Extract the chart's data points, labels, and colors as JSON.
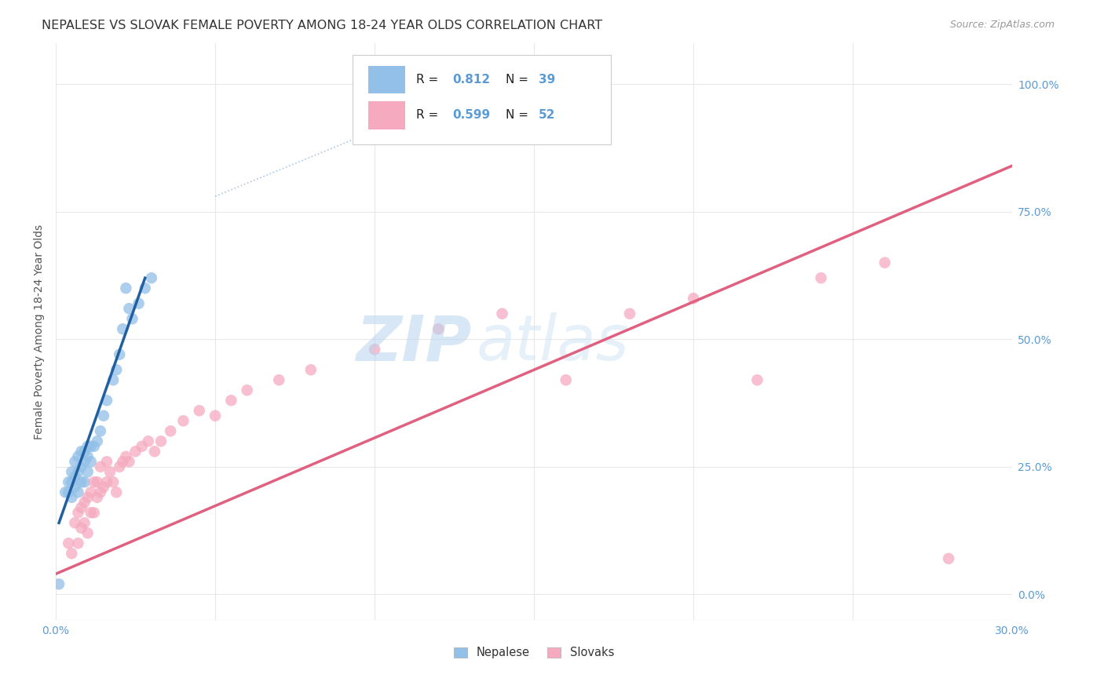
{
  "title": "NEPALESE VS SLOVAK FEMALE POVERTY AMONG 18-24 YEAR OLDS CORRELATION CHART",
  "source": "Source: ZipAtlas.com",
  "ylabel": "Female Poverty Among 18-24 Year Olds",
  "xlim": [
    0.0,
    0.3
  ],
  "ylim": [
    -0.05,
    1.08
  ],
  "xticks": [
    0.0,
    0.05,
    0.1,
    0.15,
    0.2,
    0.25,
    0.3
  ],
  "yticks": [
    0.0,
    0.25,
    0.5,
    0.75,
    1.0
  ],
  "ytick_labels": [
    "0.0%",
    "25.0%",
    "50.0%",
    "75.0%",
    "100.0%"
  ],
  "xtick_labels": [
    "0.0%",
    "",
    "",
    "",
    "",
    "",
    "30.0%"
  ],
  "nepalese_color": "#92C0E8",
  "slovak_color": "#F5AABF",
  "nepalese_R": 0.812,
  "nepalese_N": 39,
  "slovak_R": 0.599,
  "slovak_N": 52,
  "nepalese_line_color": "#2060A0",
  "slovak_line_color": "#E06080",
  "ref_line_color": "#A0C0E0",
  "background_color": "#FFFFFF",
  "grid_color": "#E8E8E8",
  "title_color": "#333333",
  "axis_label_color": "#555555",
  "tick_label_color": "#5B9BD5",
  "watermark_color": "#D0E4F4",
  "nepalese_x": [
    0.001,
    0.003,
    0.004,
    0.004,
    0.005,
    0.005,
    0.005,
    0.006,
    0.006,
    0.006,
    0.007,
    0.007,
    0.007,
    0.008,
    0.008,
    0.008,
    0.009,
    0.009,
    0.009,
    0.01,
    0.01,
    0.01,
    0.011,
    0.011,
    0.012,
    0.013,
    0.014,
    0.015,
    0.016,
    0.018,
    0.019,
    0.02,
    0.021,
    0.022,
    0.023,
    0.024,
    0.026,
    0.028,
    0.03
  ],
  "nepalese_y": [
    0.02,
    0.2,
    0.22,
    0.2,
    0.19,
    0.22,
    0.24,
    0.21,
    0.23,
    0.26,
    0.2,
    0.24,
    0.27,
    0.22,
    0.25,
    0.28,
    0.22,
    0.26,
    0.28,
    0.24,
    0.27,
    0.29,
    0.26,
    0.29,
    0.29,
    0.3,
    0.32,
    0.35,
    0.38,
    0.42,
    0.44,
    0.47,
    0.52,
    0.6,
    0.56,
    0.54,
    0.57,
    0.6,
    0.62
  ],
  "slovak_x": [
    0.004,
    0.005,
    0.006,
    0.007,
    0.007,
    0.008,
    0.008,
    0.009,
    0.009,
    0.01,
    0.01,
    0.011,
    0.011,
    0.012,
    0.012,
    0.013,
    0.013,
    0.014,
    0.014,
    0.015,
    0.016,
    0.016,
    0.017,
    0.018,
    0.019,
    0.02,
    0.021,
    0.022,
    0.023,
    0.025,
    0.027,
    0.029,
    0.031,
    0.033,
    0.036,
    0.04,
    0.045,
    0.05,
    0.055,
    0.06,
    0.07,
    0.08,
    0.1,
    0.12,
    0.14,
    0.16,
    0.18,
    0.2,
    0.22,
    0.24,
    0.26,
    0.28
  ],
  "slovak_y": [
    0.1,
    0.08,
    0.14,
    0.1,
    0.16,
    0.13,
    0.17,
    0.14,
    0.18,
    0.12,
    0.19,
    0.16,
    0.2,
    0.16,
    0.22,
    0.19,
    0.22,
    0.2,
    0.25,
    0.21,
    0.22,
    0.26,
    0.24,
    0.22,
    0.2,
    0.25,
    0.26,
    0.27,
    0.26,
    0.28,
    0.29,
    0.3,
    0.28,
    0.3,
    0.32,
    0.34,
    0.36,
    0.35,
    0.38,
    0.4,
    0.42,
    0.44,
    0.48,
    0.52,
    0.55,
    0.42,
    0.55,
    0.58,
    0.42,
    0.62,
    0.65,
    0.07
  ],
  "nep_line_x": [
    0.001,
    0.028
  ],
  "nep_line_y": [
    0.14,
    0.62
  ],
  "slov_line_x": [
    0.0,
    0.3
  ],
  "slov_line_y": [
    0.04,
    0.84
  ],
  "ref_line_x": [
    0.05,
    0.155
  ],
  "ref_line_y": [
    0.78,
    1.05
  ]
}
